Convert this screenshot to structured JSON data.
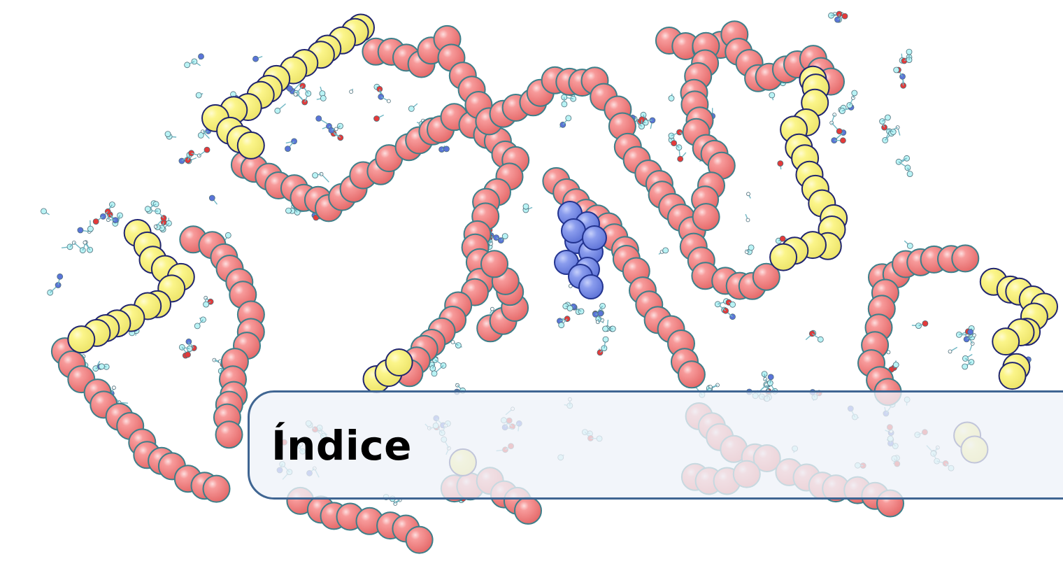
{
  "chapter": {
    "title": "Índice"
  },
  "background_image": {
    "subject": "dna-molecule-space-filling-model",
    "colors": {
      "backbone": "#f07f7f",
      "backbone_highlight": "#f9d3d3",
      "backbone_outline": "#3d7f8a",
      "terminal_segments": "#f7f280",
      "terminal_outline": "#20256f",
      "ligand": "#7f93e8",
      "ligand_outline": "#22338f",
      "base_carbon": "#b9f3f5",
      "base_nitrogen": "#5a74d8",
      "base_oxygen": "#e43a3a",
      "base_hydrogen": "#ffffff"
    }
  },
  "title_box": {
    "border_color": "#3f6592",
    "fill_color": "#eef2f8"
  }
}
